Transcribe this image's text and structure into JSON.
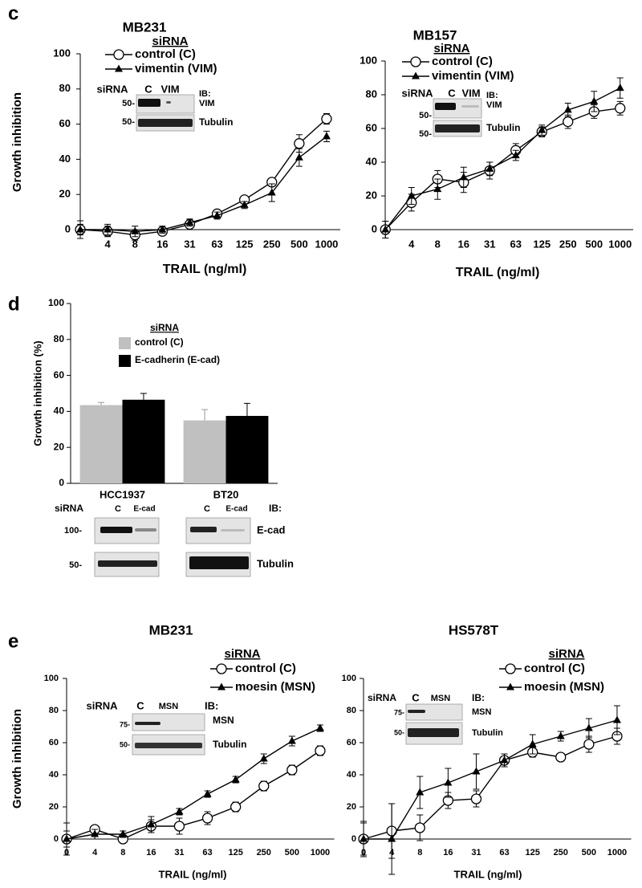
{
  "chart_data": [
    {
      "type": "line",
      "panel": "c",
      "title": "MB231",
      "xlabel": "TRAIL (ng/ml)",
      "ylabel": "Growth inhibition",
      "categories": [
        null,
        "4",
        "8",
        "16",
        "31",
        "63",
        "125",
        "250",
        "500",
        "1000"
      ],
      "ylim": [
        0,
        100
      ],
      "yticks": [
        0,
        20,
        40,
        60,
        80,
        100
      ],
      "legend_title": "siRNA",
      "series": [
        {
          "name": "control (C)",
          "color": "#000000",
          "marker": "open-circle",
          "values": [
            0,
            -1,
            -3,
            -1,
            3,
            9,
            17,
            27,
            49,
            63
          ],
          "errors": [
            5,
            3,
            3,
            2,
            3,
            2,
            2,
            2,
            5,
            3
          ]
        },
        {
          "name": "vimentin (VIM)",
          "color": "#000000",
          "marker": "filled-triangle",
          "values": [
            0,
            0,
            -1,
            0,
            4,
            8,
            14,
            21,
            41,
            53
          ],
          "errors": [
            3,
            3,
            3,
            2,
            2,
            2,
            2,
            5,
            5,
            3
          ]
        }
      ],
      "blot": {
        "label": "siRNA",
        "lanes": [
          "C",
          "VIM"
        ],
        "ib": "IB:",
        "mw": [
          "50-",
          "50-"
        ],
        "proteins": [
          "VIM",
          "Tubulin"
        ]
      }
    },
    {
      "type": "line",
      "title": "MB157",
      "xlabel": "TRAIL (ng/ml)",
      "categories": [
        null,
        "4",
        "8",
        "16",
        "31",
        "63",
        "125",
        "250",
        "500",
        "1000"
      ],
      "ylim": [
        0,
        100
      ],
      "yticks": [
        0,
        20,
        40,
        60,
        80,
        100
      ],
      "legend_title": "siRNA",
      "series": [
        {
          "name": "control (C)",
          "color": "#000000",
          "marker": "open-circle",
          "values": [
            0,
            16,
            30,
            28,
            35,
            47,
            58,
            64,
            70,
            72
          ],
          "errors": [
            5,
            5,
            5,
            6,
            5,
            4,
            3,
            4,
            4,
            4
          ]
        },
        {
          "name": "vimentin (VIM)",
          "color": "#000000",
          "marker": "filled-triangle",
          "values": [
            0,
            20,
            24,
            31,
            36,
            44,
            59,
            71,
            76,
            84
          ],
          "errors": [
            5,
            5,
            6,
            6,
            4,
            3,
            3,
            4,
            6,
            6
          ]
        }
      ],
      "blot": {
        "label": "siRNA",
        "lanes": [
          "C",
          "VIM"
        ],
        "ib": "IB:",
        "mw": [
          "50-",
          "50-"
        ],
        "proteins": [
          "VIM",
          "Tubulin"
        ]
      }
    },
    {
      "type": "bar",
      "panel": "d",
      "ylabel": "Growth inhibition (%)",
      "categories": [
        "HCC1937",
        "BT20"
      ],
      "ylim": [
        0,
        100
      ],
      "yticks": [
        0,
        20,
        40,
        60,
        80,
        100
      ],
      "legend_title": "siRNA",
      "series": [
        {
          "name": "control (C)",
          "color": "#c0c0c0",
          "values": [
            43.5,
            35
          ],
          "errors": [
            1.5,
            6
          ]
        },
        {
          "name": "E-cadherin (E-cad)",
          "color": "#000000",
          "values": [
            46.5,
            37.5
          ],
          "errors": [
            3.5,
            7
          ]
        }
      ],
      "blot": {
        "label": "siRNA",
        "lanes": [
          "C",
          "E-cad",
          "C",
          "E-cad"
        ],
        "ib": "IB:",
        "mw": [
          "100-",
          "50-"
        ],
        "proteins": [
          "E-cad",
          "Tubulin"
        ]
      }
    },
    {
      "type": "line",
      "panel": "e",
      "title": "MB231",
      "xlabel": "TRAIL (ng/ml)",
      "ylabel": "Growth inhibition",
      "categories": [
        "0",
        "4",
        "8",
        "16",
        "31",
        "63",
        "125",
        "250",
        "500",
        "1000"
      ],
      "ylim": [
        0,
        100
      ],
      "yticks": [
        0,
        20,
        40,
        60,
        80,
        100
      ],
      "legend_title": "siRNA",
      "series": [
        {
          "name": "control (C)",
          "color": "#000000",
          "marker": "open-circle",
          "values": [
            0,
            6,
            0,
            8,
            8,
            13,
            20,
            33,
            43,
            55
          ],
          "errors": [
            10,
            2,
            2,
            4,
            5,
            4,
            3,
            3,
            3,
            3
          ]
        },
        {
          "name": "moesin (MSN)",
          "color": "#000000",
          "marker": "filled-triangle",
          "values": [
            0,
            3,
            3,
            9,
            17,
            28,
            37,
            50,
            61,
            69
          ],
          "errors": [
            5,
            3,
            2,
            5,
            2,
            2,
            2,
            3,
            3,
            2
          ]
        }
      ],
      "blot": {
        "label": "siRNA",
        "lanes": [
          "C",
          "MSN"
        ],
        "ib": "IB:",
        "mw": [
          "75-",
          "50-"
        ],
        "proteins": [
          "MSN",
          "Tubulin"
        ]
      }
    },
    {
      "type": "line",
      "title": "HS578T",
      "xlabel": "TRAIL (ng/ml)",
      "categories": [
        "0",
        "4",
        "8",
        "16",
        "31",
        "63",
        "125",
        "250",
        "500",
        "1000"
      ],
      "ylim": [
        0,
        100
      ],
      "yticks": [
        0,
        20,
        40,
        60,
        80,
        100
      ],
      "legend_title": "siRNA",
      "series": [
        {
          "name": "control (C)",
          "color": "#000000",
          "marker": "open-circle",
          "values": [
            0,
            5,
            7,
            24,
            25,
            49,
            54,
            51,
            59,
            64
          ],
          "errors": [
            11,
            17,
            8,
            5,
            5,
            4,
            3,
            2,
            5,
            5
          ]
        },
        {
          "name": "moesin (MSN)",
          "color": "#000000",
          "marker": "filled-triangle",
          "values": [
            0,
            0,
            29,
            35,
            42,
            49,
            59,
            64,
            69,
            74
          ],
          "errors": [
            10,
            22,
            10,
            9,
            11,
            4,
            6,
            3,
            6,
            9
          ]
        }
      ],
      "blot": {
        "label": "siRNA",
        "lanes": [
          "C",
          "MSN"
        ],
        "ib": "IB:",
        "mw": [
          "75-",
          "50-"
        ],
        "proteins": [
          "MSN",
          "Tubulin"
        ]
      }
    }
  ]
}
